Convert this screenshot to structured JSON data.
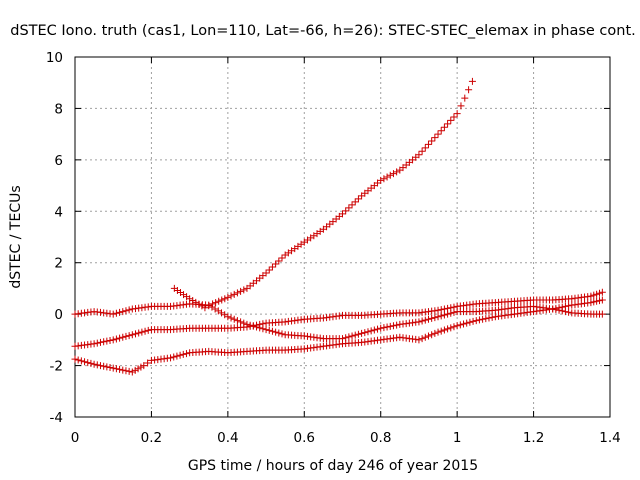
{
  "chart_data": {
    "type": "scatter",
    "title": "dSTEC Iono. truth (cas1, Lon=110, Lat=-66, h=26): STEC-STEC_elemax in phase cont.",
    "xlabel": "GPS time / hours of day 246 of year 2015",
    "ylabel": "dSTEC  / TECUs",
    "xlim": [
      0,
      1.4
    ],
    "ylim": [
      -4,
      10
    ],
    "x_ticks": [
      "0",
      "0.2",
      "0.4",
      "0.6",
      "0.8",
      "1",
      "1.2",
      "1.4"
    ],
    "y_ticks": [
      "-4",
      "-2",
      "0",
      "2",
      "4",
      "6",
      "8",
      "10"
    ],
    "grid": true,
    "marker": "+",
    "color": "#cc0000",
    "series": [
      {
        "x": [
          0.26,
          0.3,
          0.34,
          0.36,
          0.4,
          0.45,
          0.5,
          0.55,
          0.6,
          0.65,
          0.7,
          0.75,
          0.8,
          0.85,
          0.9,
          0.95,
          1.0,
          1.02,
          1.04
        ],
        "y": [
          1.0,
          0.6,
          0.25,
          0.4,
          0.65,
          1.0,
          1.6,
          2.3,
          2.8,
          3.3,
          3.9,
          4.6,
          5.2,
          5.6,
          6.2,
          7.0,
          7.8,
          8.4,
          9.05
        ]
      },
      {
        "x": [
          0.0,
          0.05,
          0.1,
          0.15,
          0.2,
          0.25,
          0.3,
          0.35,
          0.4,
          0.45,
          0.5,
          0.55,
          0.6,
          0.65,
          0.7,
          0.75,
          0.8,
          0.85,
          0.9,
          0.95,
          1.0,
          1.05,
          1.1,
          1.15,
          1.2,
          1.25,
          1.3,
          1.35,
          1.38
        ],
        "y": [
          0.0,
          0.1,
          0.0,
          0.2,
          0.3,
          0.3,
          0.4,
          0.35,
          -0.1,
          -0.4,
          -0.6,
          -0.8,
          -0.85,
          -0.95,
          -0.95,
          -0.75,
          -0.55,
          -0.4,
          -0.3,
          -0.1,
          0.1,
          0.1,
          0.15,
          0.25,
          0.3,
          0.2,
          0.05,
          0.0,
          0.0
        ]
      },
      {
        "x": [
          0.0,
          0.05,
          0.1,
          0.15,
          0.2,
          0.25,
          0.3,
          0.35,
          0.4,
          0.45,
          0.5,
          0.55,
          0.6,
          0.65,
          0.7,
          0.75,
          0.8,
          0.85,
          0.9,
          0.95,
          1.0,
          1.05,
          1.1,
          1.15,
          1.2,
          1.25,
          1.3,
          1.35,
          1.38
        ],
        "y": [
          -1.25,
          -1.15,
          -1.0,
          -0.8,
          -0.6,
          -0.6,
          -0.55,
          -0.55,
          -0.55,
          -0.5,
          -0.35,
          -0.3,
          -0.2,
          -0.15,
          -0.05,
          -0.05,
          0.0,
          0.05,
          0.05,
          0.15,
          0.3,
          0.4,
          0.45,
          0.5,
          0.55,
          0.55,
          0.6,
          0.7,
          0.85
        ]
      },
      {
        "x": [
          0.0,
          0.05,
          0.1,
          0.15,
          0.18,
          0.2,
          0.25,
          0.3,
          0.35,
          0.4,
          0.45,
          0.5,
          0.55,
          0.6,
          0.65,
          0.7,
          0.75,
          0.8,
          0.85,
          0.9,
          0.95,
          1.0,
          1.05,
          1.1,
          1.15,
          1.2,
          1.25,
          1.3,
          1.35,
          1.38
        ],
        "y": [
          -1.75,
          -1.95,
          -2.1,
          -2.25,
          -2.0,
          -1.8,
          -1.7,
          -1.5,
          -1.45,
          -1.5,
          -1.45,
          -1.4,
          -1.4,
          -1.35,
          -1.25,
          -1.15,
          -1.1,
          -1.0,
          -0.9,
          -1.0,
          -0.7,
          -0.45,
          -0.25,
          -0.1,
          0.0,
          0.1,
          0.2,
          0.35,
          0.45,
          0.55
        ]
      }
    ]
  }
}
